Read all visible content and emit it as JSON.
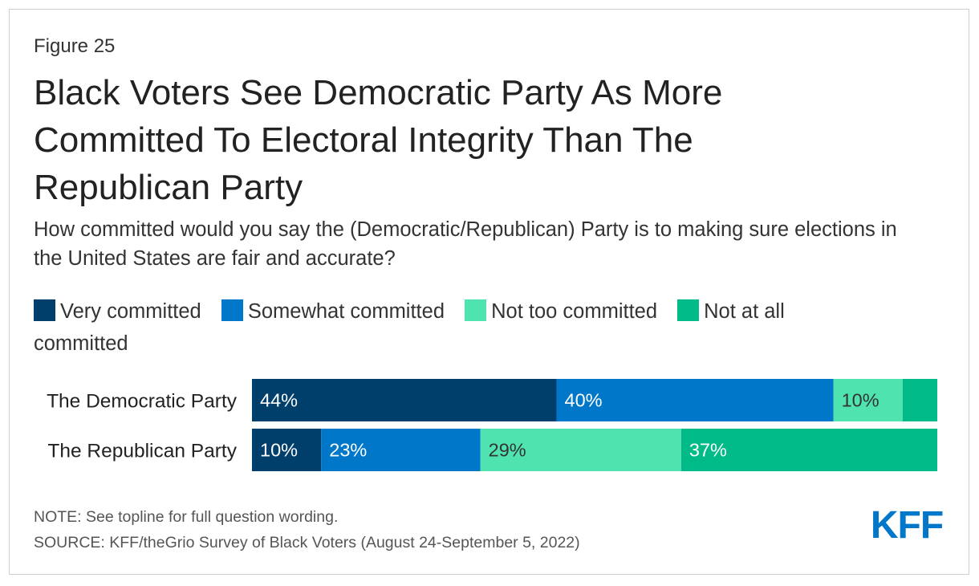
{
  "figure_label": "Figure 25",
  "title": "Black Voters See Democratic Party As More Committed To Electoral Integrity Than The Republican Party",
  "subtitle": "How committed would you say the (Democratic/Republican) Party is to making sure elections in the United States are fair and accurate?",
  "chart_data": {
    "type": "bar",
    "orientation": "horizontal",
    "stacked": true,
    "categories": [
      "The Democratic Party",
      "The Republican Party"
    ],
    "series": [
      {
        "name": "Very committed",
        "color": "#003f6b",
        "values": [
          44,
          10
        ],
        "labels": [
          "44%",
          "10%"
        ]
      },
      {
        "name": "Somewhat committed",
        "color": "#0077c8",
        "values": [
          40,
          23
        ],
        "labels": [
          "40%",
          "23%"
        ]
      },
      {
        "name": "Not too committed",
        "color": "#4fe3b0",
        "values": [
          10,
          29
        ],
        "labels": [
          "10%",
          "29%"
        ]
      },
      {
        "name": "Not at all committed",
        "color": "#00bb88",
        "values": [
          5,
          37
        ],
        "labels": [
          "",
          "37%"
        ]
      }
    ],
    "label_colors": [
      "#ffffff",
      "#ffffff",
      "#333333",
      "#ffffff"
    ],
    "xlim": [
      0,
      99
    ],
    "legend_position": "top",
    "grid": false
  },
  "note": "NOTE: See topline for full question wording.",
  "source": "SOURCE: KFF/theGrio Survey of Black Voters (August 24-September 5, 2022)",
  "logo": {
    "text": "KFF",
    "color": "#0077c8"
  }
}
